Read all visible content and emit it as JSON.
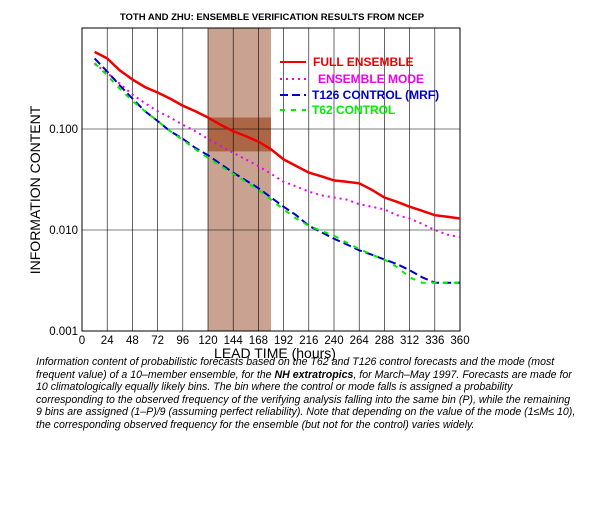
{
  "title": "TOTH AND ZHU: ENSEMBLE VERIFICATION RESULTS FROM NCEP",
  "caption": {
    "part1": "Information content of probabilistic forecasts based on the T62 and T126 control forecasts and the mode (most frequent value) of a 10–member ensemble, for the ",
    "bold": "NH extratropics",
    "part2": ", for March–May 1997. Forecasts are made for 10 climatologically equally likely bins. The bin where the control or mode falls is assigned a probability corresponding to the observed frequency of the verifying analysis falling into the same bin (P), while the remaining 9 bins are assigned  (1–P)/9 (assuming perfect reliability). Note that depending on the value of the mode (1≤M≤ 10), the corresponding observed frequency for the ensemble (but not for the control) varies widely."
  },
  "colors": {
    "full_ensemble": "#ee0000",
    "ensemble_mode": "#ee00ee",
    "t126": "#0000cc",
    "t62": "#00ee00",
    "shade_light": "#c9a291",
    "shade_dark": "#a0522d"
  },
  "chart_data": {
    "type": "line",
    "title": "TOTH AND ZHU: ENSEMBLE VERIFICATION RESULTS FROM NCEP",
    "xlabel": "LEAD TIME (hours)",
    "ylabel": "INFORMATION CONTENT",
    "y_scale": "log",
    "xlim": [
      0,
      360
    ],
    "ylim": [
      0.001,
      1.0
    ],
    "x_ticks": [
      0,
      24,
      48,
      72,
      96,
      120,
      144,
      168,
      192,
      216,
      240,
      264,
      288,
      312,
      336,
      360
    ],
    "y_ticks": [
      0.001,
      0.01,
      0.1
    ],
    "y_tick_labels": [
      "0.001",
      "0.010",
      "0.100"
    ],
    "grid": true,
    "legend_position": "top-right",
    "highlight_x_range": [
      120,
      180
    ],
    "highlight_y_range": [
      0.06,
      0.13
    ],
    "x": [
      12,
      24,
      36,
      48,
      60,
      72,
      84,
      96,
      108,
      120,
      132,
      144,
      156,
      168,
      180,
      192,
      204,
      216,
      228,
      240,
      252,
      264,
      276,
      288,
      300,
      312,
      324,
      336,
      348,
      360
    ],
    "series": [
      {
        "name": "FULL ENSEMBLE",
        "color_key": "full_ensemble",
        "dash": "solid",
        "values": [
          0.58,
          0.5,
          0.38,
          0.31,
          0.26,
          0.23,
          0.2,
          0.17,
          0.15,
          0.13,
          0.11,
          0.095,
          0.085,
          0.075,
          0.063,
          0.05,
          0.043,
          0.037,
          0.034,
          0.031,
          0.03,
          0.029,
          0.025,
          0.021,
          0.019,
          0.017,
          0.0155,
          0.014,
          0.0135,
          0.013
        ]
      },
      {
        "name": "ENSEMBLE MODE",
        "color_key": "ensemble_mode",
        "dash": "dot",
        "values": [
          0.44,
          0.36,
          0.28,
          0.22,
          0.18,
          0.15,
          0.13,
          0.11,
          0.095,
          0.08,
          0.068,
          0.058,
          0.05,
          0.043,
          0.036,
          0.03,
          0.027,
          0.024,
          0.022,
          0.021,
          0.02,
          0.018,
          0.017,
          0.016,
          0.014,
          0.013,
          0.0115,
          0.01,
          0.009,
          0.0085
        ]
      },
      {
        "name": "T126 CONTROL (MRF)",
        "color_key": "t126",
        "dash": "dash",
        "values": [
          0.5,
          0.37,
          0.27,
          0.2,
          0.15,
          0.12,
          0.095,
          0.08,
          0.065,
          0.055,
          0.045,
          0.037,
          0.031,
          0.026,
          0.021,
          0.017,
          0.014,
          0.011,
          0.0095,
          0.0082,
          0.0072,
          0.0063,
          0.0057,
          0.0051,
          0.0046,
          0.004,
          0.0034,
          0.003,
          0.003,
          0.003
        ]
      },
      {
        "name": "T62 CONTROL",
        "color_key": "t62",
        "dash": "dashdot",
        "values": [
          0.45,
          0.34,
          0.25,
          0.19,
          0.15,
          0.12,
          0.095,
          0.078,
          0.063,
          0.052,
          0.043,
          0.036,
          0.03,
          0.025,
          0.02,
          0.016,
          0.013,
          0.011,
          0.0098,
          0.0088,
          0.0075,
          0.0065,
          0.0057,
          0.0051,
          0.0043,
          0.0034,
          0.003,
          0.003,
          0.003,
          0.003
        ]
      }
    ]
  }
}
